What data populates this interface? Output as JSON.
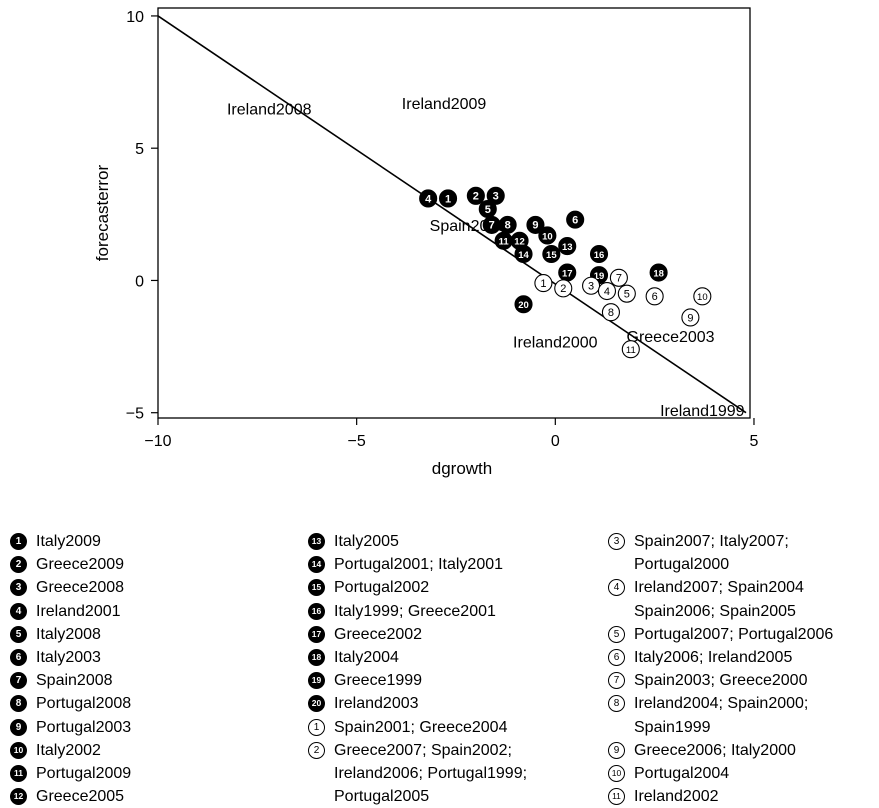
{
  "chart_data": {
    "type": "scatter",
    "xlabel": "dgrowth",
    "ylabel": "forecasterror",
    "xlim": [
      -10,
      5
    ],
    "ylim": [
      -5,
      10
    ],
    "xticks": [
      -10,
      -5,
      0,
      5
    ],
    "yticks": [
      -5,
      0,
      5,
      10
    ],
    "xtick_labels": [
      "−10",
      "−5",
      "0",
      "5"
    ],
    "ytick_labels": [
      "−5",
      "0",
      "5",
      "10"
    ],
    "grid": false,
    "fit_line": {
      "x": [
        -10,
        4.8
      ],
      "y": [
        10,
        -5
      ]
    },
    "text_points": [
      {
        "label": "Ireland2008",
        "x": -7.2,
        "y": 6.5
      },
      {
        "label": "Ireland2009",
        "x": -2.8,
        "y": 6.7
      },
      {
        "label": "Spain2009",
        "x": -2.2,
        "y": 2.1
      },
      {
        "label": "Ireland2000",
        "x": 0.0,
        "y": -2.3
      },
      {
        "label": "Greece2003",
        "x": 2.9,
        "y": -2.1
      },
      {
        "label": "Ireland1999",
        "x": 3.7,
        "y": -4.9
      }
    ],
    "markers": [
      {
        "id": "1",
        "style": "filled",
        "x": -2.7,
        "y": 3.1
      },
      {
        "id": "2",
        "style": "filled",
        "x": -2.0,
        "y": 3.2
      },
      {
        "id": "3",
        "style": "filled",
        "x": -1.5,
        "y": 3.2
      },
      {
        "id": "4",
        "style": "filled",
        "x": -3.2,
        "y": 3.1
      },
      {
        "id": "5",
        "style": "filled",
        "x": -1.7,
        "y": 2.7
      },
      {
        "id": "6",
        "style": "filled",
        "x": 0.5,
        "y": 2.3
      },
      {
        "id": "7",
        "style": "filled",
        "x": -1.6,
        "y": 2.1
      },
      {
        "id": "8",
        "style": "filled",
        "x": -1.2,
        "y": 2.1
      },
      {
        "id": "9",
        "style": "filled",
        "x": -0.5,
        "y": 2.1
      },
      {
        "id": "10",
        "style": "filled",
        "x": -0.2,
        "y": 1.7
      },
      {
        "id": "11",
        "style": "filled",
        "x": -1.3,
        "y": 1.5
      },
      {
        "id": "12",
        "style": "filled",
        "x": -0.9,
        "y": 1.5
      },
      {
        "id": "13",
        "style": "filled",
        "x": 0.3,
        "y": 1.3
      },
      {
        "id": "14",
        "style": "filled",
        "x": -0.8,
        "y": 1.0
      },
      {
        "id": "15",
        "style": "filled",
        "x": -0.1,
        "y": 1.0
      },
      {
        "id": "16",
        "style": "filled",
        "x": 1.1,
        "y": 1.0
      },
      {
        "id": "17",
        "style": "filled",
        "x": 0.3,
        "y": 0.3
      },
      {
        "id": "18",
        "style": "filled",
        "x": 2.6,
        "y": 0.3
      },
      {
        "id": "19",
        "style": "filled",
        "x": 1.1,
        "y": 0.2
      },
      {
        "id": "20",
        "style": "filled",
        "x": -0.8,
        "y": -0.9
      },
      {
        "id": "1",
        "style": "open",
        "x": -0.3,
        "y": -0.1
      },
      {
        "id": "2",
        "style": "open",
        "x": 0.2,
        "y": -0.3
      },
      {
        "id": "3",
        "style": "open",
        "x": 0.9,
        "y": -0.2
      },
      {
        "id": "4",
        "style": "open",
        "x": 1.3,
        "y": -0.4
      },
      {
        "id": "5",
        "style": "open",
        "x": 1.8,
        "y": -0.5
      },
      {
        "id": "6",
        "style": "open",
        "x": 2.5,
        "y": -0.6
      },
      {
        "id": "7",
        "style": "open",
        "x": 1.6,
        "y": 0.1
      },
      {
        "id": "8",
        "style": "open",
        "x": 1.4,
        "y": -1.2
      },
      {
        "id": "9",
        "style": "open",
        "x": 3.4,
        "y": -1.4
      },
      {
        "id": "10",
        "style": "open",
        "x": 3.7,
        "y": -0.6
      },
      {
        "id": "11",
        "style": "open",
        "x": 1.9,
        "y": -2.6
      }
    ]
  },
  "legend": {
    "columns": [
      [
        {
          "id": "1",
          "style": "filled",
          "text": "Italy2009"
        },
        {
          "id": "2",
          "style": "filled",
          "text": "Greece2009"
        },
        {
          "id": "3",
          "style": "filled",
          "text": "Greece2008"
        },
        {
          "id": "4",
          "style": "filled",
          "text": "Ireland2001"
        },
        {
          "id": "5",
          "style": "filled",
          "text": "Italy2008"
        },
        {
          "id": "6",
          "style": "filled",
          "text": "Italy2003"
        },
        {
          "id": "7",
          "style": "filled",
          "text": "Spain2008"
        },
        {
          "id": "8",
          "style": "filled",
          "text": "Portugal2008"
        },
        {
          "id": "9",
          "style": "filled",
          "text": "Portugal2003"
        },
        {
          "id": "10",
          "style": "filled",
          "text": "Italy2002"
        },
        {
          "id": "11",
          "style": "filled",
          "text": "Portugal2009"
        },
        {
          "id": "12",
          "style": "filled",
          "text": "Greece2005"
        }
      ],
      [
        {
          "id": "13",
          "style": "filled",
          "text": "Italy2005"
        },
        {
          "id": "14",
          "style": "filled",
          "text": "Portugal2001; Italy2001"
        },
        {
          "id": "15",
          "style": "filled",
          "text": "Portugal2002"
        },
        {
          "id": "16",
          "style": "filled",
          "text": "Italy1999; Greece2001"
        },
        {
          "id": "17",
          "style": "filled",
          "text": "Greece2002"
        },
        {
          "id": "18",
          "style": "filled",
          "text": "Italy2004"
        },
        {
          "id": "19",
          "style": "filled",
          "text": "Greece1999"
        },
        {
          "id": "20",
          "style": "filled",
          "text": "Ireland2003"
        },
        {
          "id": "1",
          "style": "open",
          "text": "Spain2001; Greece2004"
        },
        {
          "id": "2",
          "style": "open",
          "text": "Greece2007; Spain2002; Ireland2006; Portugal1999; Portugal2005"
        }
      ],
      [
        {
          "id": "3",
          "style": "open",
          "text": "Spain2007; Italy2007; Portugal2000"
        },
        {
          "id": "4",
          "style": "open",
          "text": "Ireland2007; Spain2004 Spain2006; Spain2005"
        },
        {
          "id": "5",
          "style": "open",
          "text": "Portugal2007; Portugal2006"
        },
        {
          "id": "6",
          "style": "open",
          "text": "Italy2006; Ireland2005"
        },
        {
          "id": "7",
          "style": "open",
          "text": "Spain2003; Greece2000"
        },
        {
          "id": "8",
          "style": "open",
          "text": "Ireland2004; Spain2000; Spain1999"
        },
        {
          "id": "9",
          "style": "open",
          "text": "Greece2006; Italy2000"
        },
        {
          "id": "10",
          "style": "open",
          "text": "Portugal2004"
        },
        {
          "id": "11",
          "style": "open",
          "text": "Ireland2002"
        }
      ]
    ]
  }
}
